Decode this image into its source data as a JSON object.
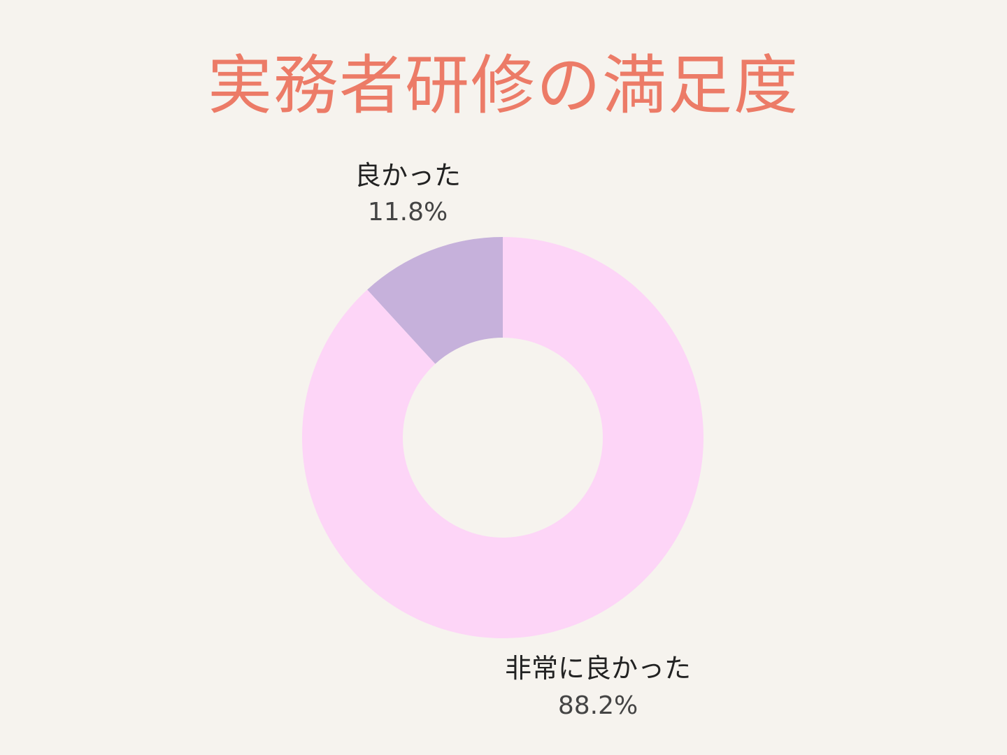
{
  "chart_data": {
    "type": "pie",
    "donut": true,
    "title": "実務者研修の満足度",
    "slices": [
      {
        "label": "非常に良かった",
        "value": 88.2,
        "display": "88.2%",
        "color": "#fdd5f7"
      },
      {
        "label": "良かった",
        "value": 11.8,
        "display": "11.8%",
        "color": "#c6b1db"
      }
    ],
    "start_angle": "top",
    "direction": "clockwise",
    "title_color": "#ec7b67",
    "background": "#f6f3ee"
  }
}
